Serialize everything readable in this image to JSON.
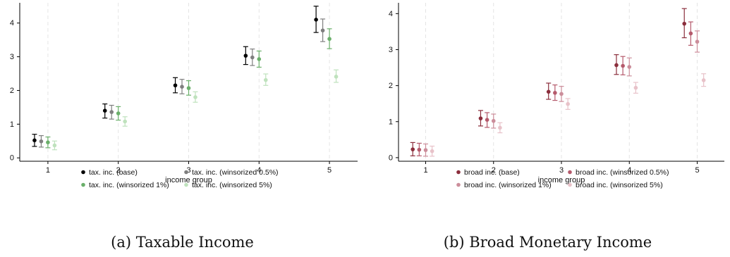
{
  "chart_data": [
    {
      "type": "scatter",
      "subtype": "point-estimate-with-95pct-ci",
      "caption": "(a) Taxable Income",
      "xlabel": "income group",
      "ylabel": "",
      "categories": [
        "1",
        "2",
        "3",
        "4",
        "5"
      ],
      "xlim": [
        0.6,
        5.4
      ],
      "ylim": [
        -0.1,
        4.6
      ],
      "yticks": [
        "0",
        "1",
        "2",
        "3",
        "4"
      ],
      "grid": "vertical dashed lines at x ticks",
      "legend_position": "bottom",
      "series": [
        {
          "name": "tax. inc. (base)",
          "color": "#000000",
          "values": [
            0.52,
            1.4,
            2.15,
            3.03,
            4.1
          ],
          "lo": [
            0.34,
            1.18,
            1.93,
            2.77,
            3.72
          ],
          "hi": [
            0.7,
            1.6,
            2.38,
            3.3,
            4.5
          ]
        },
        {
          "name": "tax. inc. (winsorized 0.5%)",
          "color": "#7f7f7f",
          "values": [
            0.49,
            1.36,
            2.11,
            2.98,
            3.78
          ],
          "lo": [
            0.32,
            1.15,
            1.9,
            2.74,
            3.45
          ],
          "hi": [
            0.66,
            1.56,
            2.33,
            3.23,
            4.12
          ]
        },
        {
          "name": "tax. inc. (winsorized 1%)",
          "color": "#6aaf6a",
          "values": [
            0.46,
            1.32,
            2.07,
            2.93,
            3.53
          ],
          "lo": [
            0.3,
            1.12,
            1.86,
            2.69,
            3.24
          ],
          "hi": [
            0.62,
            1.52,
            2.29,
            3.17,
            3.83
          ]
        },
        {
          "name": "tax. inc. (winsorized 5%)",
          "color": "#bfe2bd",
          "values": [
            0.37,
            1.08,
            1.8,
            2.31,
            2.41
          ],
          "lo": [
            0.24,
            0.94,
            1.65,
            2.15,
            2.24
          ],
          "hi": [
            0.5,
            1.22,
            1.96,
            2.49,
            2.61
          ]
        }
      ]
    },
    {
      "type": "scatter",
      "subtype": "point-estimate-with-95pct-ci",
      "caption": "(b) Broad Monetary Income",
      "xlabel": "income group",
      "ylabel": "",
      "categories": [
        "1",
        "2",
        "3",
        "4",
        "5"
      ],
      "xlim": [
        0.6,
        5.4
      ],
      "ylim": [
        -0.1,
        4.3
      ],
      "yticks": [
        "0",
        "1",
        "2",
        "3",
        "4"
      ],
      "grid": "vertical dashed lines at x ticks",
      "legend_position": "bottom",
      "series": [
        {
          "name": "broad inc. (base)",
          "color": "#8b2e3c",
          "values": [
            0.23,
            1.09,
            1.83,
            2.57,
            3.72
          ],
          "lo": [
            0.05,
            0.88,
            1.62,
            2.31,
            3.33
          ],
          "hi": [
            0.42,
            1.31,
            2.07,
            2.86,
            4.14
          ]
        },
        {
          "name": "broad inc. (winsorized 0.5%)",
          "color": "#b55a6c",
          "values": [
            0.22,
            1.05,
            1.8,
            2.55,
            3.45
          ],
          "lo": [
            0.05,
            0.84,
            1.59,
            2.3,
            3.12
          ],
          "hi": [
            0.4,
            1.25,
            2.02,
            2.81,
            3.77
          ]
        },
        {
          "name": "broad inc. (winsorized 1%)",
          "color": "#cc8e9b",
          "values": [
            0.21,
            1.02,
            1.77,
            2.52,
            3.22
          ],
          "lo": [
            0.04,
            0.82,
            1.56,
            2.27,
            2.93
          ],
          "hi": [
            0.38,
            1.21,
            1.98,
            2.77,
            3.52
          ]
        },
        {
          "name": "broad inc. (winsorized 5%)",
          "color": "#e8c2c9",
          "values": [
            0.18,
            0.83,
            1.49,
            1.94,
            2.15
          ],
          "lo": [
            0.04,
            0.69,
            1.34,
            1.79,
            1.98
          ],
          "hi": [
            0.32,
            0.97,
            1.64,
            2.09,
            2.33
          ]
        }
      ]
    }
  ]
}
